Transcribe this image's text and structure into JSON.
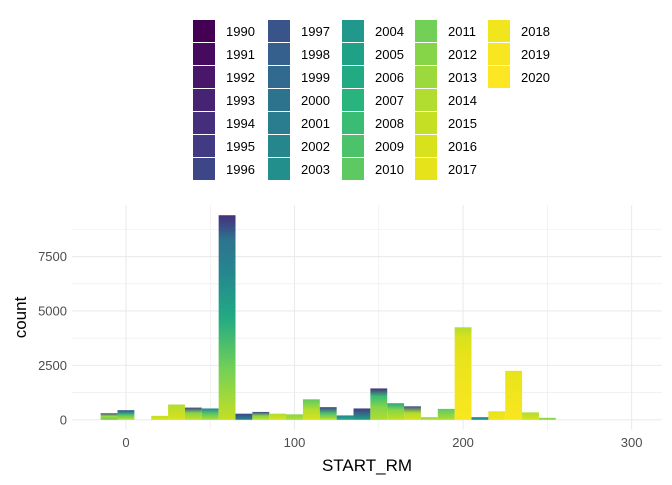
{
  "chart_data": {
    "type": "bar",
    "stacked": true,
    "xlabel": "START_RM",
    "ylabel": "count",
    "x_ticks": [
      0,
      100,
      200,
      300
    ],
    "y_ticks": [
      0,
      2500,
      5000,
      7500
    ],
    "xlim": [
      -32,
      318
    ],
    "ylim": [
      -470,
      9870
    ],
    "bin_width": 10,
    "grid": true,
    "legend_position": "top",
    "legend_title": "",
    "legend": {
      "labels": [
        "1990",
        "1991",
        "1992",
        "1993",
        "1994",
        "1995",
        "1996",
        "1997",
        "1998",
        "1999",
        "2000",
        "2001",
        "2002",
        "2003",
        "2004",
        "2005",
        "2006",
        "2007",
        "2008",
        "2009",
        "2010",
        "2011",
        "2012",
        "2013",
        "2014",
        "2015",
        "2016",
        "2017",
        "2018",
        "2019",
        "2020"
      ],
      "colors": [
        "#440154",
        "#460B5E",
        "#481769",
        "#472374",
        "#452F7C",
        "#423B84",
        "#3D4787",
        "#39538B",
        "#355F8D",
        "#316A8E",
        "#2D738E",
        "#297D8E",
        "#26868E",
        "#238F8D",
        "#20988B",
        "#1FA187",
        "#22AA83",
        "#2AB47D",
        "#3ABC75",
        "#4CC26B",
        "#5EC961",
        "#72D057",
        "#86D549",
        "#9BD93C",
        "#B0DD2F",
        "#C5DF24",
        "#D8E21C",
        "#E7E31A",
        "#F1E51D",
        "#F8E621",
        "#FDE725"
      ]
    },
    "bins": [
      {
        "x": -10,
        "total": 300,
        "stops": [
          [
            0,
            "#6BCD5A"
          ],
          [
            0.55,
            "#9BD93C"
          ],
          [
            1,
            "#3D4787"
          ]
        ]
      },
      {
        "x": 0,
        "total": 440,
        "stops": [
          [
            0,
            "#C5DF24"
          ],
          [
            0.45,
            "#5EC961"
          ],
          [
            0.8,
            "#26868E"
          ],
          [
            1,
            "#3D4787"
          ]
        ]
      },
      {
        "x": 20,
        "total": 180,
        "stops": [
          [
            0,
            "#D8E21C"
          ],
          [
            1,
            "#C5DF24"
          ]
        ]
      },
      {
        "x": 30,
        "total": 700,
        "stops": [
          [
            0,
            "#D8E21C"
          ],
          [
            0.55,
            "#C5DF24"
          ],
          [
            1,
            "#B0DD2F"
          ]
        ]
      },
      {
        "x": 40,
        "total": 560,
        "stops": [
          [
            0,
            "#C5DF24"
          ],
          [
            0.55,
            "#86D549"
          ],
          [
            1,
            "#3D4787"
          ]
        ]
      },
      {
        "x": 50,
        "total": 520,
        "stops": [
          [
            0,
            "#B0DD2F"
          ],
          [
            0.5,
            "#5EC961"
          ],
          [
            1,
            "#26868E"
          ]
        ]
      },
      {
        "x": 60,
        "total": 9400,
        "stops": [
          [
            0,
            "#C5DF24"
          ],
          [
            0.25,
            "#72D057"
          ],
          [
            0.5,
            "#22AA83"
          ],
          [
            0.72,
            "#26868E"
          ],
          [
            0.88,
            "#2D738E"
          ],
          [
            1,
            "#452F7C"
          ]
        ]
      },
      {
        "x": 70,
        "total": 280,
        "stops": [
          [
            0,
            "#26868E"
          ],
          [
            1,
            "#3D4787"
          ]
        ]
      },
      {
        "x": 80,
        "total": 360,
        "stops": [
          [
            0,
            "#C5DF24"
          ],
          [
            0.5,
            "#86D549"
          ],
          [
            1,
            "#3D4787"
          ]
        ]
      },
      {
        "x": 90,
        "total": 280,
        "stops": [
          [
            0,
            "#D8E21C"
          ],
          [
            1,
            "#B0DD2F"
          ]
        ]
      },
      {
        "x": 100,
        "total": 250,
        "stops": [
          [
            0,
            "#B0DD2F"
          ],
          [
            1,
            "#86D549"
          ]
        ]
      },
      {
        "x": 110,
        "total": 940,
        "stops": [
          [
            0,
            "#D8E21C"
          ],
          [
            0.5,
            "#B0DD2F"
          ],
          [
            1,
            "#5EC961"
          ]
        ]
      },
      {
        "x": 120,
        "total": 580,
        "stops": [
          [
            0,
            "#C5DF24"
          ],
          [
            0.5,
            "#4CC26B"
          ],
          [
            1,
            "#3D4787"
          ]
        ]
      },
      {
        "x": 130,
        "total": 200,
        "stops": [
          [
            0,
            "#22AA83"
          ],
          [
            1,
            "#26868E"
          ]
        ]
      },
      {
        "x": 140,
        "total": 520,
        "stops": [
          [
            0,
            "#1FA187"
          ],
          [
            1,
            "#423B84"
          ]
        ]
      },
      {
        "x": 150,
        "total": 1440,
        "stops": [
          [
            0,
            "#B0DD2F"
          ],
          [
            0.4,
            "#86D549"
          ],
          [
            0.75,
            "#3ABC75"
          ],
          [
            1,
            "#452F7C"
          ]
        ]
      },
      {
        "x": 160,
        "total": 760,
        "stops": [
          [
            0,
            "#C5DF24"
          ],
          [
            0.6,
            "#86D549"
          ],
          [
            1,
            "#22AA83"
          ]
        ]
      },
      {
        "x": 170,
        "total": 620,
        "stops": [
          [
            0,
            "#D8E21C"
          ],
          [
            0.5,
            "#B0DD2F"
          ],
          [
            1,
            "#39538B"
          ]
        ]
      },
      {
        "x": 180,
        "total": 120,
        "stops": [
          [
            0,
            "#B0DD2F"
          ],
          [
            1,
            "#9BD93C"
          ]
        ]
      },
      {
        "x": 190,
        "total": 500,
        "stops": [
          [
            0,
            "#B0DD2F"
          ],
          [
            1,
            "#5EC961"
          ]
        ]
      },
      {
        "x": 200,
        "total": 4250,
        "stops": [
          [
            0,
            "#F8E621"
          ],
          [
            0.4,
            "#F1E51D"
          ],
          [
            0.7,
            "#E7E31A"
          ],
          [
            0.9,
            "#D8E21C"
          ],
          [
            1,
            "#B0DD2F"
          ]
        ]
      },
      {
        "x": 210,
        "total": 120,
        "stops": [
          [
            0,
            "#26868E"
          ],
          [
            1,
            "#238F8D"
          ]
        ]
      },
      {
        "x": 220,
        "total": 390,
        "stops": [
          [
            0,
            "#F1E51D"
          ],
          [
            1,
            "#E7E31A"
          ]
        ]
      },
      {
        "x": 230,
        "total": 2250,
        "stops": [
          [
            0,
            "#F8E621"
          ],
          [
            0.55,
            "#F1E51D"
          ],
          [
            1,
            "#E7E31A"
          ]
        ]
      },
      {
        "x": 240,
        "total": 340,
        "stops": [
          [
            0,
            "#D8E21C"
          ],
          [
            1,
            "#B0DD2F"
          ]
        ]
      },
      {
        "x": 250,
        "total": 90,
        "stops": [
          [
            0,
            "#9BD93C"
          ],
          [
            1,
            "#86D549"
          ]
        ]
      }
    ]
  }
}
